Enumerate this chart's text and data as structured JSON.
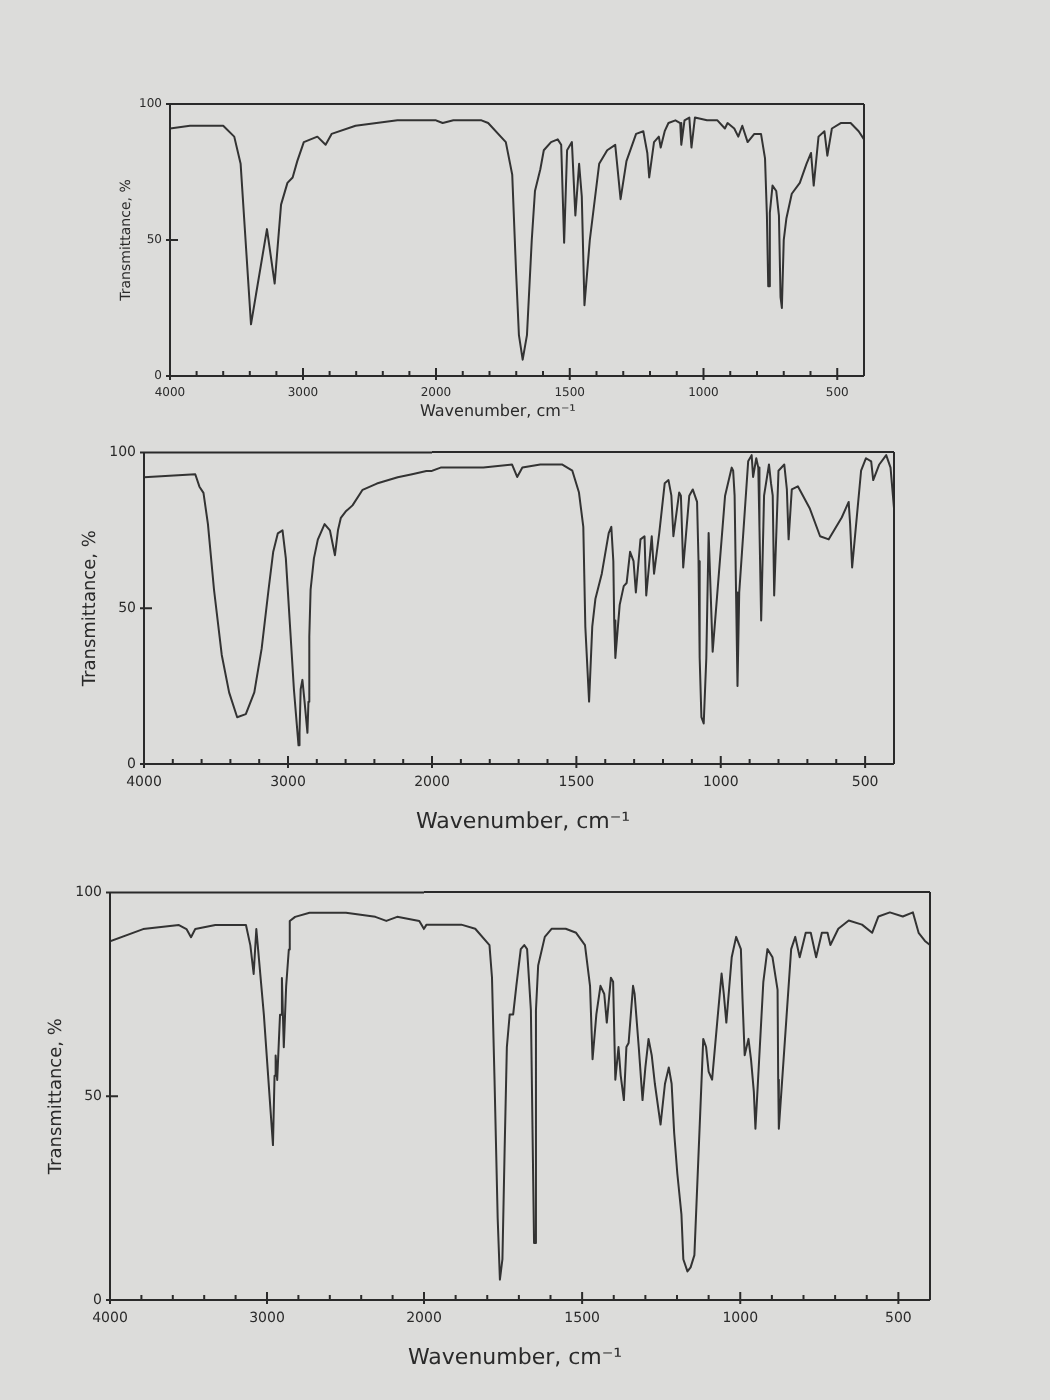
{
  "chart_data": [
    {
      "type": "line",
      "ylabel": "Transmittance, %",
      "xlim": [
        4000,
        2000
      ],
      "ylim": [
        0,
        100
      ],
      "yticks": [
        0,
        50,
        100
      ],
      "xticks": [
        4000,
        {
          "value": 3800,
          "label": null
        },
        {
          "value": 3600,
          "label": null
        },
        {
          "value": 3400,
          "label": null
        },
        {
          "value": 3200,
          "label": null
        },
        3000,
        {
          "value": 2800,
          "label": null
        },
        {
          "value": 2600,
          "label": null
        },
        {
          "value": 2400,
          "label": null
        },
        {
          "value": 2200,
          "label": null
        },
        2000
      ],
      "x": [
        4000,
        3850,
        3704,
        3600,
        3517,
        3469,
        3391,
        3271,
        3213,
        3165,
        3117,
        3078,
        3043,
        2994,
        2892,
        2830,
        2785,
        2605,
        2290,
        2000
      ],
      "series": [
        {
          "color": "#333333",
          "values": [
            91,
            92,
            92,
            92,
            88,
            78,
            19,
            54,
            34,
            63,
            71,
            73,
            79,
            86,
            88,
            85,
            89,
            92,
            94,
            94
          ]
        }
      ]
    },
    {
      "type": "line",
      "xlabel": "Wavenumber, cm⁻¹",
      "tick_labels": "x",
      "xlim": [
        2000,
        400
      ],
      "ylim": [
        0,
        100
      ],
      "xticks": [
        {
          "value": 1900,
          "label": null
        },
        {
          "value": 1800,
          "label": null
        },
        {
          "value": 1700,
          "label": null
        },
        {
          "value": 1600,
          "label": null
        },
        1500,
        {
          "value": 1400,
          "label": null
        },
        {
          "value": 1300,
          "label": null
        },
        {
          "value": 1200,
          "label": null
        },
        {
          "value": 1100,
          "label": null
        },
        1000,
        {
          "value": 900,
          "label": null
        },
        {
          "value": 800,
          "label": null
        },
        {
          "value": 700,
          "label": null
        },
        {
          "value": 600,
          "label": null
        },
        500
      ],
      "x": [
        2000,
        1975,
        1935,
        1830,
        1805,
        1739,
        1715,
        1701,
        1690,
        1676,
        1660,
        1642,
        1630,
        1610,
        1597,
        1570,
        1545,
        1532,
        1521,
        1510,
        1492,
        1479,
        1465,
        1455,
        1445,
        1425,
        1390,
        1360,
        1330,
        1310,
        1288,
        1252,
        1225,
        1210,
        1203,
        1185,
        1167,
        1160,
        1145,
        1131,
        1105,
        1087,
        1083,
        1071,
        1053,
        1045,
        1032,
        987,
        948,
        920,
        910,
        885,
        870,
        855,
        835,
        810,
        785,
        770,
        763,
        758,
        752,
        742,
        728,
        718,
        712,
        707,
        700,
        690,
        670,
        640,
        615,
        598,
        588,
        570,
        548,
        537,
        520,
        487,
        450,
        420,
        400
      ],
      "series": [
        {
          "color": "#333333",
          "values": [
            94,
            93,
            94,
            94,
            93,
            86,
            74,
            39,
            15,
            6,
            15,
            50,
            68,
            76,
            83,
            86,
            87,
            85,
            49,
            83,
            86,
            59,
            78,
            66,
            26,
            50,
            78,
            83,
            85,
            65,
            79,
            89,
            90,
            82,
            73,
            86,
            88,
            84,
            90,
            93,
            94,
            93,
            85,
            94,
            95,
            84,
            95,
            94,
            94,
            91,
            93,
            91,
            88,
            92,
            86,
            89,
            89,
            80,
            59,
            33,
            60,
            70,
            68,
            59,
            29,
            25,
            50,
            58,
            67,
            71,
            78,
            82,
            70,
            88,
            90,
            81,
            91,
            93,
            93,
            90,
            87
          ]
        }
      ]
    },
    {
      "type": "line",
      "ylabel": "Transmittance, %",
      "xlim": [
        4000,
        2000
      ],
      "ylim": [
        0,
        100
      ],
      "yticks": [
        0,
        50,
        100
      ],
      "xticks": [
        4000,
        {
          "value": 3800,
          "label": null
        },
        {
          "value": 3600,
          "label": null
        },
        {
          "value": 3400,
          "label": null
        },
        {
          "value": 3200,
          "label": null
        },
        3000,
        {
          "value": 2800,
          "label": null
        },
        {
          "value": 2600,
          "label": null
        },
        {
          "value": 2400,
          "label": null
        },
        {
          "value": 2200,
          "label": null
        },
        2000
      ],
      "x": [
        4000,
        3644,
        3615,
        3587,
        3556,
        3514,
        3460,
        3409,
        3353,
        3293,
        3234,
        3183,
        3135,
        3103,
        3071,
        3038,
        3015,
        2959,
        2927,
        2920,
        2912,
        2900,
        2885,
        2865,
        2858,
        2852,
        2843,
        2820,
        2793,
        2746,
        2709,
        2674,
        2653,
        2633,
        2600,
        2552,
        2482,
        2383,
        2238,
        2138,
        2039,
        2000
      ],
      "series": [
        {
          "color": "#333333",
          "values": [
            92,
            93,
            89,
            87,
            77,
            56,
            35,
            23,
            15,
            16,
            23,
            37,
            56,
            68,
            74,
            75,
            66,
            24,
            6,
            10,
            24,
            27,
            20,
            10,
            20,
            41,
            56,
            66,
            72,
            77,
            75,
            67,
            75,
            79,
            81,
            83,
            88,
            90,
            92,
            93,
            94,
            94
          ]
        }
      ]
    },
    {
      "type": "line",
      "xlabel": "Wavenumber, cm⁻¹",
      "tick_labels": "x",
      "xlim": [
        2000,
        400
      ],
      "ylim": [
        0,
        100
      ],
      "xticks": [
        {
          "value": 1900,
          "label": null
        },
        {
          "value": 1800,
          "label": null
        },
        {
          "value": 1700,
          "label": null
        },
        {
          "value": 1600,
          "label": null
        },
        1500,
        {
          "value": 1400,
          "label": null
        },
        {
          "value": 1300,
          "label": null
        },
        {
          "value": 1200,
          "label": null
        },
        {
          "value": 1100,
          "label": null
        },
        1000,
        {
          "value": 900,
          "label": null
        },
        {
          "value": 800,
          "label": null
        },
        {
          "value": 700,
          "label": null
        },
        {
          "value": 600,
          "label": null
        },
        500
      ],
      "x": [
        2000,
        1970,
        1921,
        1822,
        1723,
        1705,
        1687,
        1625,
        1550,
        1514,
        1491,
        1476,
        1469,
        1456,
        1445,
        1434,
        1412,
        1388,
        1379,
        1372,
        1369,
        1365,
        1350,
        1336,
        1326,
        1314,
        1302,
        1294,
        1278,
        1264,
        1258,
        1239,
        1231,
        1213,
        1194,
        1181,
        1171,
        1164,
        1144,
        1138,
        1130,
        1109,
        1097,
        1082,
        1077,
        1073,
        1067,
        1059,
        1050,
        1042,
        1035,
        1028,
        985,
        962,
        957,
        952,
        947,
        942,
        936,
        905,
        893,
        888,
        877,
        870,
        866,
        860,
        850,
        833,
        826,
        820,
        815,
        800,
        780,
        771,
        765,
        754,
        733,
        692,
        656,
        626,
        581,
        557,
        552,
        545,
        514,
        497,
        479,
        472,
        451,
        427,
        412,
        400
      ],
      "series": [
        {
          "color": "#333333",
          "values": [
            94,
            95,
            95,
            95,
            96,
            92,
            95,
            96,
            96,
            94,
            87,
            76,
            44,
            20,
            44,
            53,
            61,
            74,
            76,
            65,
            46,
            34,
            51,
            57,
            58,
            68,
            65,
            55,
            72,
            73,
            54,
            73,
            61,
            74,
            90,
            91,
            86,
            73,
            87,
            86,
            63,
            86,
            88,
            84,
            65,
            34,
            15,
            13,
            34,
            74,
            55,
            36,
            86,
            95,
            94,
            86,
            55,
            25,
            55,
            97,
            99,
            92,
            98,
            95,
            76,
            46,
            86,
            96,
            90,
            86,
            54,
            94,
            96,
            88,
            72,
            88,
            89,
            82,
            73,
            72,
            79,
            84,
            77,
            63,
            94,
            98,
            97,
            91,
            96,
            99,
            95,
            82
          ]
        }
      ]
    },
    {
      "type": "line",
      "ylabel": "Transmittance, %",
      "xlim": [
        4000,
        2000
      ],
      "ylim": [
        0,
        100
      ],
      "yticks": [
        0,
        50,
        100
      ],
      "xticks": [
        4000,
        {
          "value": 3800,
          "label": null
        },
        {
          "value": 3600,
          "label": null
        },
        {
          "value": 3400,
          "label": null
        },
        {
          "value": 3200,
          "label": null
        },
        3000,
        {
          "value": 2800,
          "label": null
        },
        {
          "value": 2600,
          "label": null
        },
        {
          "value": 2400,
          "label": null
        },
        {
          "value": 2200,
          "label": null
        },
        2000
      ],
      "x": [
        4000,
        3789,
        3561,
        3513,
        3484,
        3457,
        3329,
        3134,
        3106,
        3085,
        3068,
        3020,
        2962,
        2952,
        2945,
        2935,
        2925,
        2917,
        2905,
        2893,
        2878,
        2861,
        2855,
        2821,
        2729,
        2497,
        2310,
        2240,
        2171,
        2030,
        2000
      ],
      "series": [
        {
          "color": "#333333",
          "values": [
            88,
            91,
            92,
            91,
            89,
            91,
            92,
            92,
            87,
            80,
            91,
            70,
            38,
            55,
            60,
            54,
            63,
            70,
            79,
            62,
            77,
            86,
            93,
            94,
            95,
            95,
            94,
            93,
            94,
            93,
            91
          ]
        }
      ]
    },
    {
      "type": "line",
      "xlabel": "Wavenumber, cm⁻¹",
      "tick_labels": "x",
      "xlim": [
        2000,
        400
      ],
      "ylim": [
        0,
        100
      ],
      "xticks": [
        {
          "value": 1900,
          "label": null
        },
        {
          "value": 1800,
          "label": null
        },
        {
          "value": 1700,
          "label": null
        },
        {
          "value": 1600,
          "label": null
        },
        1500,
        {
          "value": 1400,
          "label": null
        },
        {
          "value": 1300,
          "label": null
        },
        {
          "value": 1200,
          "label": null
        },
        {
          "value": 1100,
          "label": null
        },
        1000,
        {
          "value": 900,
          "label": null
        },
        {
          "value": 800,
          "label": null
        },
        {
          "value": 700,
          "label": null
        },
        {
          "value": 600,
          "label": null
        },
        500
      ],
      "x": [
        2000,
        1992,
        1882,
        1838,
        1793,
        1785,
        1777,
        1767,
        1760,
        1752,
        1745,
        1738,
        1729,
        1718,
        1708,
        1694,
        1683,
        1674,
        1662,
        1652,
        1646,
        1639,
        1618,
        1596,
        1552,
        1519,
        1491,
        1475,
        1467,
        1455,
        1442,
        1430,
        1422,
        1409,
        1402,
        1395,
        1385,
        1378,
        1368,
        1360,
        1353,
        1339,
        1334,
        1321,
        1309,
        1300,
        1290,
        1280,
        1270,
        1252,
        1238,
        1226,
        1217,
        1209,
        1199,
        1186,
        1180,
        1167,
        1157,
        1145,
        1117,
        1108,
        1100,
        1089,
        1073,
        1059,
        1052,
        1044,
        1027,
        1013,
        998,
        993,
        986,
        974,
        966,
        957,
        952,
        927,
        914,
        898,
        882,
        880,
        878,
        839,
        826,
        812,
        793,
        777,
        760,
        742,
        724,
        715,
        690,
        657,
        615,
        583,
        563,
        527,
        486,
        454,
        436,
        416,
        400
      ],
      "series": [
        {
          "color": "#333333",
          "values": [
            91,
            92,
            92,
            91,
            87,
            79,
            54,
            20,
            5,
            10,
            37,
            62,
            70,
            70,
            77,
            86,
            87,
            86,
            71,
            14,
            71,
            82,
            89,
            91,
            91,
            90,
            87,
            77,
            59,
            70,
            77,
            75,
            68,
            79,
            78,
            54,
            62,
            55,
            49,
            62,
            63,
            77,
            75,
            62,
            49,
            57,
            64,
            60,
            53,
            43,
            53,
            57,
            53,
            41,
            31,
            21,
            10,
            7,
            8,
            11,
            64,
            62,
            56,
            54,
            68,
            80,
            75,
            68,
            84,
            89,
            86,
            74,
            60,
            64,
            59,
            51,
            42,
            78,
            86,
            84,
            76,
            54,
            42,
            86,
            89,
            84,
            90,
            90,
            84,
            90,
            90,
            87,
            91,
            93,
            92,
            90,
            94,
            95,
            94,
            95,
            90,
            88,
            87
          ]
        }
      ]
    }
  ]
}
